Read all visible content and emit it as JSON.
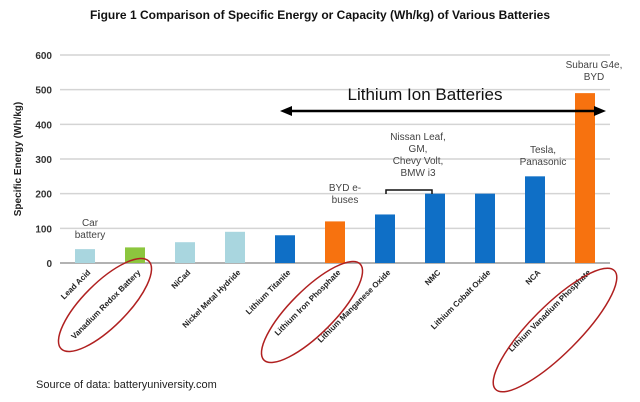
{
  "chart_data": {
    "type": "bar",
    "title": "Figure 1  Comparison of Specific Energy or Capacity (Wh/kg) of Various Batteries",
    "ylabel": "Specific Energy (Wh/kg)",
    "xlabel": "",
    "ylim": [
      0,
      600
    ],
    "yticks": [
      0,
      100,
      200,
      300,
      400,
      500,
      600
    ],
    "grid": true,
    "categories": [
      "Lead Acid",
      "Vanadium Redox Battery",
      "NiCad",
      "Nickel Metal Hydride",
      "Lithium Titanite",
      "Lithium Iron Phosphate",
      "Lithium Manganese Oxide",
      "NMC",
      "Lithium Cobalt Oxide",
      "NCA",
      "Lithium Vanadium Phosphate"
    ],
    "values": [
      40,
      45,
      60,
      90,
      80,
      120,
      140,
      200,
      200,
      250,
      490
    ],
    "bar_colors": [
      "#a9d6df",
      "#8cc63e",
      "#a9d6df",
      "#a9d6df",
      "#0f6fc6",
      "#f7720f",
      "#0f6fc6",
      "#0f6fc6",
      "#0f6fc6",
      "#0f6fc6",
      "#f7720f"
    ],
    "circled": [
      "Vanadium Redox Battery",
      "Lithium Iron Phosphate",
      "Lithium Vanadium Phosphate"
    ],
    "annotations": {
      "car": [
        "Car",
        "battery"
      ],
      "byd": [
        "BYD e-",
        "buses"
      ],
      "nissan": [
        "Nissan Leaf,",
        "GM,",
        "Chevy Volt,",
        "BMW i3"
      ],
      "tesla": [
        "Tesla,",
        "Panasonic"
      ],
      "subaru": [
        "Subaru G4e,",
        "BYD"
      ],
      "li_ion": "Lithium Ion Batteries"
    }
  },
  "source": "Source of data: batteryuniversity.com"
}
